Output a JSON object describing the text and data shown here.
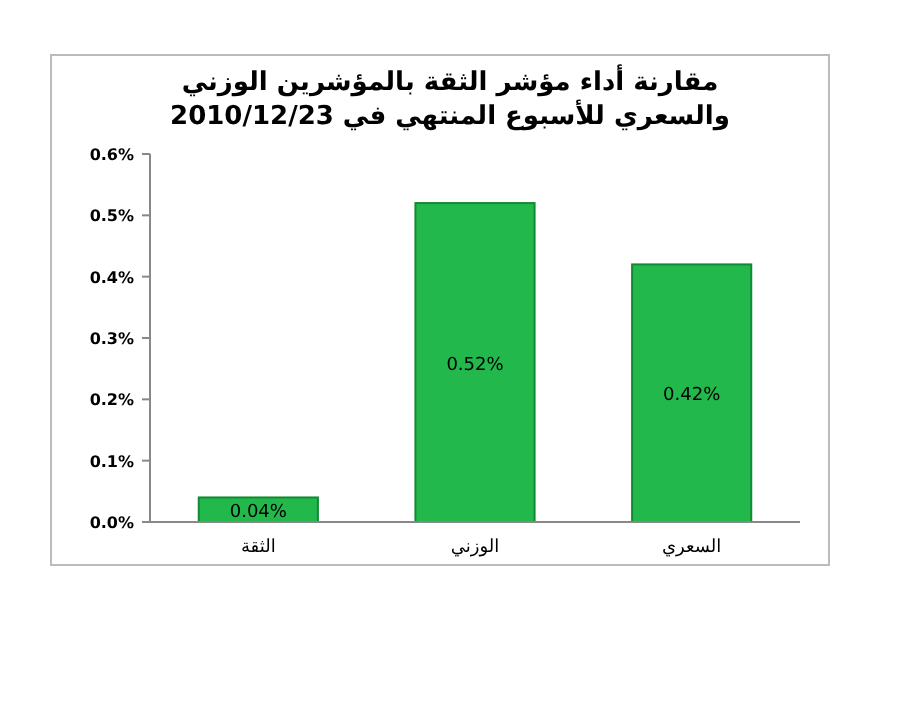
{
  "chart_data": {
    "type": "bar",
    "title": "مقارنة أداء مؤشر الثقة بالمؤشرين الوزني والسعري للأسبوع المنتهي في 2010/12/23",
    "categories": [
      "الثقة",
      "الوزني",
      "السعري"
    ],
    "values": [
      0.04,
      0.52,
      0.42
    ],
    "value_labels": [
      "0.04%",
      "0.52%",
      "0.42%"
    ],
    "color": "#22b84c",
    "ylim": [
      0,
      0.6
    ],
    "yticks": [
      {
        "value": 0,
        "label": "0.0%"
      },
      {
        "value": 0.1,
        "label": "0.1%"
      },
      {
        "value": 0.2,
        "label": "0.2%"
      },
      {
        "value": 0.3,
        "label": "0.3%"
      },
      {
        "value": 0.4,
        "label": "0.4%"
      },
      {
        "value": 0.5,
        "label": "0.5%"
      },
      {
        "value": 0.6,
        "label": "0.6%"
      }
    ],
    "grid": false
  }
}
